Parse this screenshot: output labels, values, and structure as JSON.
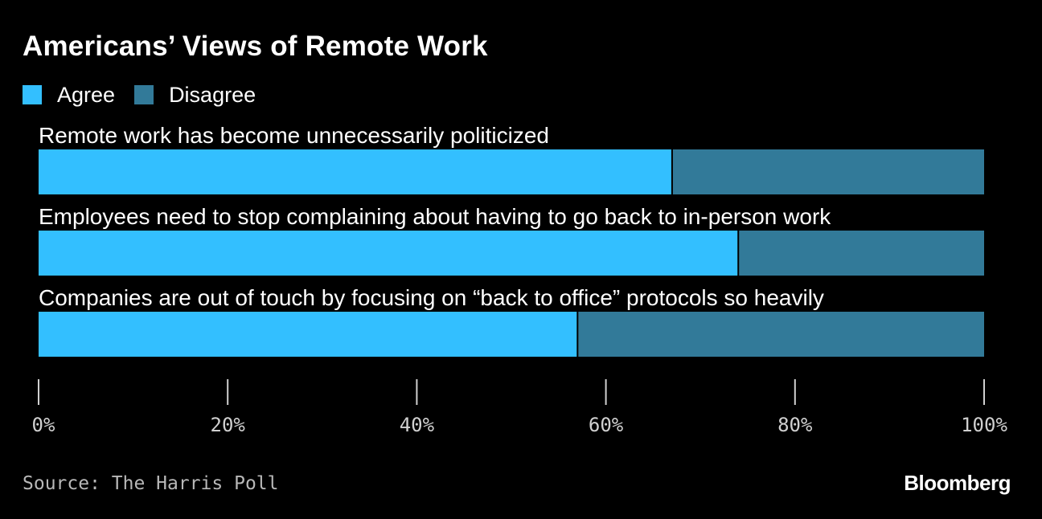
{
  "colors": {
    "agree": "#33bfff",
    "disagree": "#327a99",
    "background": "#000000",
    "text": "#ffffff",
    "source_text": "#b8b8b8"
  },
  "footer": {
    "source": "Source: The Harris Poll",
    "brand": "Bloomberg"
  },
  "chart_data": {
    "type": "bar",
    "orientation": "horizontal",
    "stacked": true,
    "title": "Americans’ Views of Remote Work",
    "legend_position": "top-left",
    "grid": false,
    "categories": [
      "Remote work has become unnecessarily politicized",
      "Employees need to stop complaining about having to go back to in-person work",
      "Companies are out of touch by focusing on “back to office” protocols so heavily"
    ],
    "series": [
      {
        "name": "Agree",
        "values": [
          67,
          74,
          57
        ]
      },
      {
        "name": "Disagree",
        "values": [
          33,
          26,
          43
        ]
      }
    ],
    "xlim": [
      0,
      100
    ],
    "x_ticks": [
      0,
      20,
      40,
      60,
      80,
      100
    ],
    "x_tick_labels": [
      "0%",
      "20%",
      "40%",
      "60%",
      "80%",
      "100%"
    ]
  }
}
